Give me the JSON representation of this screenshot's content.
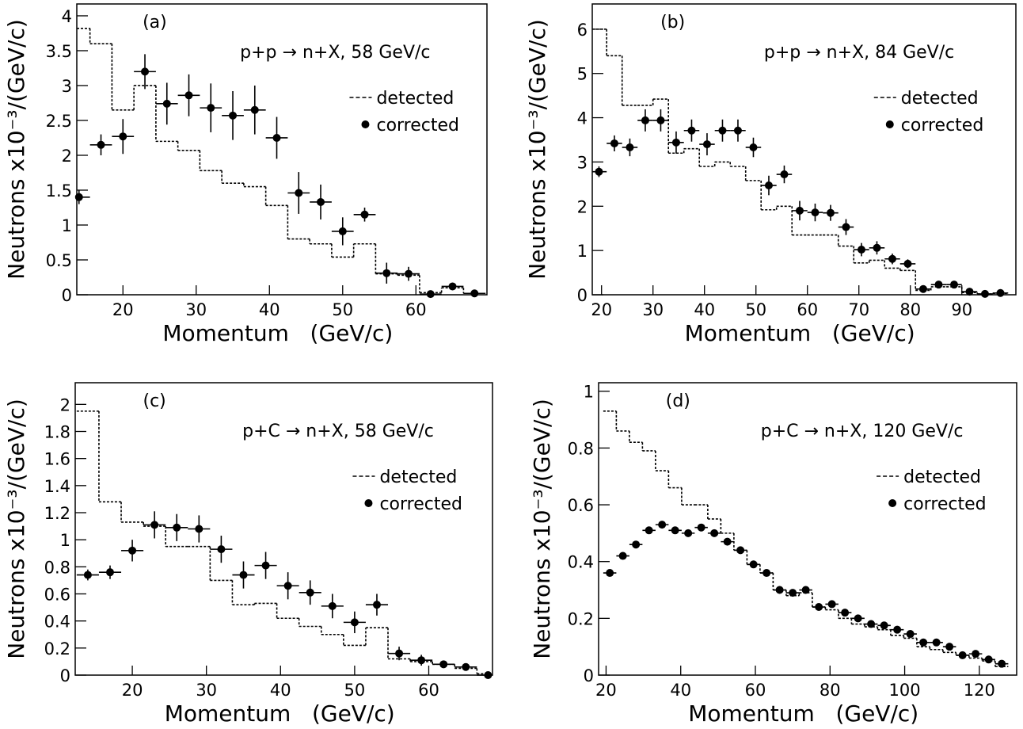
{
  "chart_data": [
    {
      "type": "errorbar",
      "label": "(a)",
      "annotation": "p+p → n+X, 58 GeV/c",
      "xlabel": "Momentum   (GeV/c)",
      "ylabel": "Neutrons x10⁻³/(GeV/c)",
      "x": [
        14,
        17,
        20,
        23,
        26,
        29,
        32,
        35,
        38,
        41,
        44,
        47,
        50,
        53,
        56,
        59,
        62,
        65,
        68
      ],
      "series": [
        {
          "name": "detected",
          "style": "step",
          "color": "#000000",
          "values": [
            3.82,
            3.6,
            2.65,
            3.0,
            2.2,
            2.07,
            1.78,
            1.6,
            1.55,
            1.28,
            0.8,
            0.73,
            0.54,
            0.73,
            0.3,
            0.28,
            0.03,
            0.1,
            0.02
          ]
        },
        {
          "name": "corrected",
          "style": "points",
          "color": "#000000",
          "values": [
            1.4,
            2.15,
            2.27,
            3.2,
            2.74,
            2.86,
            2.68,
            2.57,
            2.65,
            2.25,
            1.46,
            1.33,
            0.91,
            1.15,
            0.31,
            0.3,
            0.01,
            0.12,
            0.02
          ],
          "errors": [
            0.1,
            0.15,
            0.25,
            0.25,
            0.3,
            0.3,
            0.35,
            0.35,
            0.35,
            0.3,
            0.3,
            0.25,
            0.2,
            0.1,
            0.15,
            0.1,
            0.02,
            0.02,
            0.02
          ]
        }
      ],
      "xlim": [
        13.7,
        69.7
      ],
      "xticks": [
        20,
        30,
        40,
        50,
        60
      ],
      "ylim": [
        0,
        4.17
      ],
      "yticks": [
        0,
        0.5,
        1,
        1.5,
        2,
        2.5,
        3,
        3.5,
        4
      ]
    },
    {
      "type": "errorbar",
      "label": "(b)",
      "annotation": "p+p → n+X, 84 GeV/c",
      "xlabel": "Momentum   (GeV/c)",
      "ylabel": "Neutrons x10⁻³/(GeV/c)",
      "x": [
        19.5,
        22.5,
        25.5,
        28.5,
        31.5,
        34.5,
        37.5,
        40.5,
        43.5,
        46.5,
        49.5,
        52.5,
        55.5,
        58.5,
        61.5,
        64.5,
        67.5,
        70.5,
        73.5,
        76.5,
        79.5,
        82.5,
        85.5,
        88.5,
        91.5,
        94.5,
        97.5
      ],
      "series": [
        {
          "name": "detected",
          "style": "step",
          "color": "#000000",
          "values": [
            6.0,
            5.4,
            4.28,
            4.28,
            4.42,
            3.2,
            3.3,
            2.9,
            3.0,
            2.9,
            2.58,
            1.92,
            2.0,
            1.35,
            1.35,
            1.35,
            1.1,
            0.72,
            0.78,
            0.6,
            0.55,
            0.1,
            0.18,
            0.18,
            0.05,
            0.02,
            0.03
          ]
        },
        {
          "name": "corrected",
          "style": "points",
          "color": "#000000",
          "values": [
            2.78,
            3.42,
            3.33,
            3.94,
            3.94,
            3.44,
            3.71,
            3.4,
            3.71,
            3.71,
            3.33,
            2.47,
            2.72,
            1.9,
            1.86,
            1.85,
            1.53,
            1.02,
            1.06,
            0.81,
            0.7,
            0.13,
            0.23,
            0.23,
            0.07,
            0.02,
            0.04
          ],
          "errors": [
            0.12,
            0.18,
            0.2,
            0.25,
            0.25,
            0.25,
            0.25,
            0.25,
            0.25,
            0.25,
            0.22,
            0.22,
            0.2,
            0.22,
            0.2,
            0.18,
            0.18,
            0.15,
            0.15,
            0.12,
            0.1,
            0.06,
            0.05,
            0.05,
            0.03,
            0.02,
            0.02
          ]
        }
      ],
      "xlim": [
        18.2,
        100.5
      ],
      "xticks": [
        20,
        30,
        40,
        50,
        60,
        70,
        80,
        90
      ],
      "ylim": [
        0,
        6.57
      ],
      "yticks": [
        0,
        1,
        2,
        3,
        4,
        5,
        6
      ]
    },
    {
      "type": "errorbar",
      "label": "(c)",
      "annotation": "p+C → n+X, 58 GeV/c",
      "xlabel": "Momentum   (GeV/c)",
      "ylabel": "Neutrons x10⁻³/(GeV/c)",
      "x": [
        14,
        17,
        20,
        23,
        26,
        29,
        32,
        35,
        38,
        41,
        44,
        47,
        50,
        53,
        56,
        59,
        62,
        65,
        68
      ],
      "series": [
        {
          "name": "detected",
          "style": "step",
          "color": "#000000",
          "values": [
            1.95,
            1.28,
            1.13,
            1.1,
            0.95,
            0.95,
            0.7,
            0.52,
            0.53,
            0.42,
            0.36,
            0.3,
            0.22,
            0.35,
            0.12,
            0.1,
            0.08,
            0.05,
            0.01
          ]
        },
        {
          "name": "corrected",
          "style": "points",
          "color": "#000000",
          "values": [
            0.74,
            0.76,
            0.92,
            1.11,
            1.09,
            1.08,
            0.93,
            0.74,
            0.81,
            0.66,
            0.61,
            0.51,
            0.39,
            0.52,
            0.16,
            0.11,
            0.08,
            0.06,
            0.0
          ],
          "errors": [
            0.04,
            0.05,
            0.08,
            0.1,
            0.1,
            0.1,
            0.1,
            0.1,
            0.1,
            0.1,
            0.09,
            0.09,
            0.08,
            0.08,
            0.05,
            0.04,
            0.02,
            0.02,
            0.01
          ]
        }
      ],
      "xlim": [
        12.3,
        68.6
      ],
      "xticks": [
        20,
        30,
        40,
        50,
        60
      ],
      "ylim": [
        0,
        2.16
      ],
      "yticks": [
        0,
        0.2,
        0.4,
        0.6,
        0.8,
        1,
        1.2,
        1.4,
        1.6,
        1.8,
        2
      ]
    },
    {
      "type": "errorbar",
      "label": "(d)",
      "annotation": "p+C → n+X, 120 GeV/c",
      "xlabel": "Momentum   (GeV/c)",
      "ylabel": "Neutrons x10⁻³/(GeV/c)",
      "x": [
        21,
        24.5,
        28,
        31.5,
        35,
        38.5,
        42,
        45.5,
        49,
        52.5,
        56,
        59.5,
        63,
        66.5,
        70,
        73.5,
        77,
        80.5,
        84,
        87.5,
        91,
        94.5,
        98,
        101.5,
        105,
        108.5,
        112,
        115.5,
        119,
        122.5,
        126
      ],
      "series": [
        {
          "name": "detected",
          "style": "step",
          "color": "#000000",
          "values": [
            0.93,
            0.86,
            0.82,
            0.79,
            0.72,
            0.66,
            0.6,
            0.6,
            0.55,
            0.5,
            0.44,
            0.39,
            0.36,
            0.3,
            0.28,
            0.29,
            0.24,
            0.23,
            0.2,
            0.18,
            0.17,
            0.16,
            0.14,
            0.13,
            0.1,
            0.09,
            0.08,
            0.07,
            0.06,
            0.05,
            0.03
          ]
        },
        {
          "name": "corrected",
          "style": "points",
          "color": "#000000",
          "values": [
            0.36,
            0.42,
            0.46,
            0.51,
            0.53,
            0.51,
            0.5,
            0.52,
            0.5,
            0.47,
            0.44,
            0.39,
            0.36,
            0.3,
            0.29,
            0.3,
            0.24,
            0.25,
            0.22,
            0.2,
            0.18,
            0.175,
            0.16,
            0.145,
            0.115,
            0.115,
            0.1,
            0.07,
            0.075,
            0.055,
            0.04
          ],
          "errors": [
            0.01,
            0.01,
            0.01,
            0.01,
            0.01,
            0.01,
            0.01,
            0.01,
            0.01,
            0.01,
            0.01,
            0.01,
            0.01,
            0.01,
            0.01,
            0.01,
            0.01,
            0.01,
            0.01,
            0.01,
            0.01,
            0.01,
            0.01,
            0.01,
            0.01,
            0.01,
            0.01,
            0.01,
            0.01,
            0.01,
            0.01
          ]
        }
      ],
      "xlim": [
        18,
        130
      ],
      "xticks": [
        20,
        40,
        60,
        80,
        100,
        120
      ],
      "ylim": [
        0,
        1.03
      ],
      "yticks": [
        0,
        0.2,
        0.4,
        0.6,
        0.8,
        1
      ]
    }
  ]
}
